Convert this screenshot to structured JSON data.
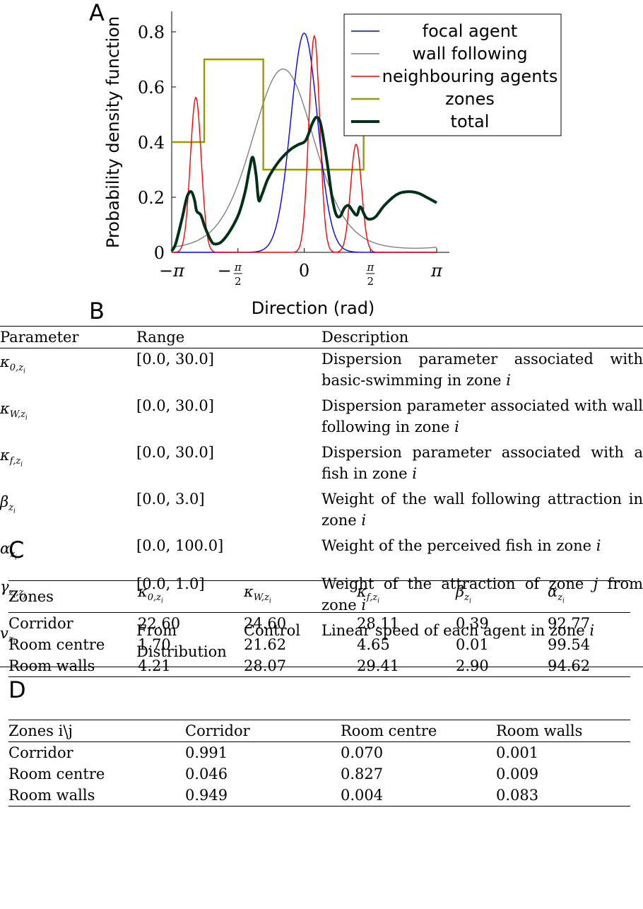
{
  "panels": {
    "a": "A",
    "b": "B",
    "c": "C",
    "d": "D"
  },
  "chart_data": {
    "type": "line",
    "xlabel": "Direction (rad)",
    "ylabel": "Probability density function",
    "xlim": [
      -3.1416,
      3.1416
    ],
    "ylim": [
      0,
      0.8
    ],
    "xticks": [
      {
        "v": -3.1416,
        "label": "−π"
      },
      {
        "v": -1.5708,
        "label": "−π/2"
      },
      {
        "v": 0,
        "label": "0"
      },
      {
        "v": 1.5708,
        "label": "π/2"
      },
      {
        "v": 3.1416,
        "label": "π"
      }
    ],
    "yticks": [
      "0",
      "0.2",
      "0.4",
      "0.6",
      "0.8"
    ],
    "legend_position": "top-right",
    "series": [
      {
        "name": "focal agent",
        "color": "#0000ff",
        "kind": "vonmises",
        "params": {
          "mu": 0.0,
          "kappa": 10.0,
          "w": 1.0
        }
      },
      {
        "name": "wall following",
        "color": "#808080",
        "kind": "vonmises",
        "params": {
          "mu": -0.5,
          "kappa": 1.9,
          "w": 1.0
        }
      },
      {
        "name": "neighbouring agents",
        "color": "#ff0000",
        "kind": "mixture",
        "params": [
          {
            "mu": -2.57,
            "kappa": 60,
            "w": 0.142
          },
          {
            "mu": 0.24,
            "kappa": 60,
            "w": 0.197
          },
          {
            "mu": 1.23,
            "kappa": 60,
            "w": 0.098
          }
        ]
      },
      {
        "name": "zones",
        "color": "#999900",
        "kind": "step",
        "x": [
          -3.1416,
          -2.37,
          -2.37,
          -0.97,
          -0.97,
          1.41,
          1.41
        ],
        "y": [
          0.4,
          0.4,
          0.7,
          0.7,
          0.3,
          0.3,
          0.44
        ]
      },
      {
        "name": "total",
        "color": "#003018",
        "kind": "combo"
      }
    ]
  },
  "table_b": {
    "headers": [
      "Parameter",
      "Range",
      "Description"
    ],
    "rows": [
      {
        "sym": "κ",
        "sub": "0,zi",
        "range": "[0.0, 30.0]",
        "desc": "Dispersion parameter associated with basic-swimming in zone i"
      },
      {
        "sym": "κ",
        "sub": "W,zi",
        "range": "[0.0, 30.0]",
        "desc": "Dispersion parameter associated with wall following in zone i"
      },
      {
        "sym": "κ",
        "sub": "f,zi",
        "range": "[0.0, 30.0]",
        "desc": "Dispersion parameter associated with a fish in zone i"
      },
      {
        "sym": "β",
        "sub": "zi",
        "range": "[0.0, 3.0]",
        "desc": "Weight of the wall following attraction in zone i"
      },
      {
        "sym": "α",
        "sub": "zi",
        "range": "[0.0, 100.0]",
        "desc": "Weight of the perceived fish in zone i"
      },
      {
        "sym": "γ",
        "sub": "zi,zj",
        "range": "[0.0, 1.0]",
        "desc": "Weight of the attraction of zone j from zone i"
      },
      {
        "sym": "v",
        "sub": "zi",
        "range": "From Control Distribution",
        "desc": "Linear speed of each agent in zone i"
      }
    ]
  },
  "table_c": {
    "headers": [
      {
        "text": "Zones"
      },
      {
        "sym": "κ",
        "sub": "0,zi"
      },
      {
        "sym": "κ",
        "sub": "W,zi"
      },
      {
        "sym": "κ",
        "sub": "f,zi"
      },
      {
        "sym": "β",
        "sub": "zi"
      },
      {
        "sym": "α",
        "sub": "zi"
      }
    ],
    "rows": [
      [
        "Corridor",
        "22.60",
        "24.60",
        "28.11",
        "0.39",
        "92.77"
      ],
      [
        "Room centre",
        "1.70",
        "21.62",
        "4.65",
        "0.01",
        "99.54"
      ],
      [
        "Room walls",
        "4.21",
        "28.07",
        "29.41",
        "2.90",
        "94.62"
      ]
    ]
  },
  "table_d": {
    "headers": [
      "Zones i\\j",
      "Corridor",
      "Room centre",
      "Room walls"
    ],
    "rows": [
      [
        "Corridor",
        "0.991",
        "0.070",
        "0.001"
      ],
      [
        "Room centre",
        "0.046",
        "0.827",
        "0.009"
      ],
      [
        "Room walls",
        "0.949",
        "0.004",
        "0.083"
      ]
    ]
  }
}
